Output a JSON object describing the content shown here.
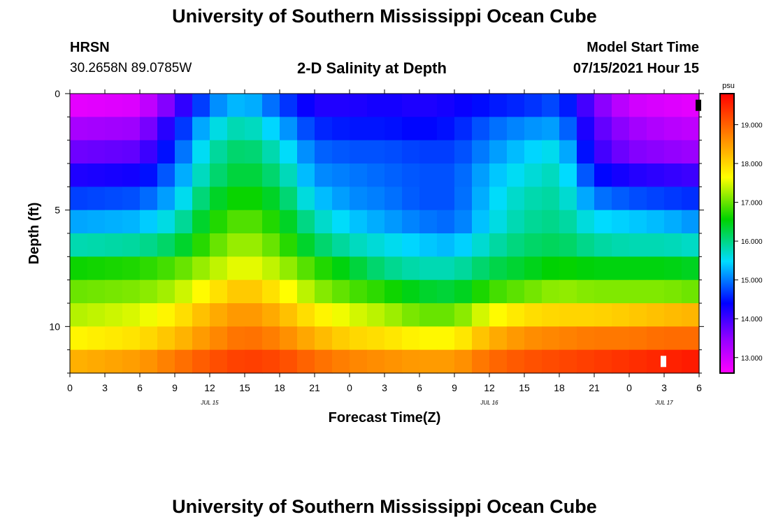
{
  "header": {
    "title": "University of Southern Mississippi Ocean Cube",
    "station_id": "HRSN",
    "coordinates": "30.2658N  89.0785W",
    "subtitle": "2-D Salinity at Depth",
    "model_start_label": "Model Start Time",
    "model_start_value": "07/15/2021 Hour 15"
  },
  "footer": {
    "title": "University of Southern Mississippi Ocean Cube"
  },
  "chart_data": {
    "type": "heatmap",
    "title": "2-D Salinity at Depth",
    "xlabel": "Forecast Time(Z)",
    "ylabel": "Depth (ft)",
    "x_ticks": [
      "0",
      "3",
      "6",
      "9",
      "12",
      "15",
      "18",
      "21",
      "0",
      "3",
      "6",
      "9",
      "12",
      "15",
      "18",
      "21",
      "0",
      "3",
      "6"
    ],
    "x_hours": [
      0,
      3,
      6,
      9,
      12,
      15,
      18,
      21,
      24,
      27,
      30,
      33,
      36,
      39,
      42,
      45,
      48,
      51,
      54
    ],
    "date_labels": [
      {
        "label": "JUL 15",
        "hour": 12
      },
      {
        "label": "JUL 16",
        "hour": 36
      },
      {
        "label": "JUL 17",
        "hour": 51
      }
    ],
    "y_ticks": [
      "0",
      "5",
      "10"
    ],
    "y_tick_values": [
      0,
      5,
      10
    ],
    "ylim": [
      0,
      12
    ],
    "xlim": [
      0,
      54
    ],
    "depth_layers_ft": [
      0.5,
      1.5,
      2.5,
      3.5,
      4.5,
      5.5,
      6.5,
      7.5,
      8.5,
      9.5,
      10.5,
      11.5
    ],
    "time_hours": [
      0,
      6,
      9,
      12,
      15,
      18,
      21,
      24,
      27,
      30,
      33,
      36,
      39,
      42,
      45,
      48,
      51,
      54
    ],
    "salinity_psu": [
      [
        12.8,
        12.9,
        13.8,
        15.0,
        15.4,
        14.8,
        14.2,
        14.2,
        14.3,
        14.2,
        14.3,
        14.5,
        14.6,
        14.8,
        13.7,
        13.0,
        12.9,
        12.8
      ],
      [
        13.3,
        13.4,
        14.4,
        15.5,
        15.9,
        15.3,
        14.6,
        14.5,
        14.5,
        14.4,
        14.5,
        14.9,
        15.1,
        15.2,
        13.9,
        13.4,
        13.2,
        13.1
      ],
      [
        13.7,
        13.8,
        14.7,
        15.8,
        16.2,
        15.7,
        14.9,
        14.8,
        14.8,
        14.7,
        14.7,
        15.1,
        15.4,
        15.6,
        14.1,
        13.6,
        13.5,
        13.4
      ],
      [
        14.2,
        14.3,
        15.0,
        16.0,
        16.4,
        16.0,
        15.1,
        15.0,
        14.9,
        14.8,
        14.8,
        15.3,
        15.6,
        15.8,
        14.5,
        14.2,
        14.1,
        14.0
      ],
      [
        14.7,
        14.8,
        15.3,
        16.3,
        16.7,
        16.3,
        15.4,
        15.1,
        15.0,
        14.8,
        14.8,
        15.4,
        15.8,
        15.9,
        15.0,
        14.8,
        14.7,
        14.6
      ],
      [
        15.2,
        15.3,
        15.7,
        16.6,
        17.0,
        16.6,
        15.8,
        15.4,
        15.2,
        15.0,
        14.9,
        15.5,
        15.9,
        16.0,
        15.5,
        15.4,
        15.3,
        15.1
      ],
      [
        15.8,
        15.9,
        16.2,
        16.9,
        17.3,
        16.9,
        16.2,
        15.8,
        15.6,
        15.4,
        15.3,
        15.8,
        16.1,
        16.2,
        15.9,
        15.8,
        15.8,
        15.7
      ],
      [
        16.6,
        16.7,
        16.9,
        17.3,
        17.6,
        17.3,
        16.8,
        16.4,
        16.0,
        15.8,
        15.8,
        16.2,
        16.4,
        16.6,
        16.5,
        16.5,
        16.5,
        16.4
      ],
      [
        17.0,
        17.1,
        17.3,
        17.8,
        18.2,
        17.8,
        17.2,
        16.9,
        16.7,
        16.4,
        16.3,
        16.8,
        17.0,
        17.2,
        17.1,
        17.1,
        17.1,
        17.0
      ],
      [
        17.3,
        17.5,
        17.8,
        18.3,
        18.6,
        18.3,
        17.8,
        17.5,
        17.3,
        17.0,
        17.0,
        17.6,
        17.9,
        18.0,
        18.0,
        18.1,
        18.2,
        18.3
      ],
      [
        17.7,
        17.9,
        18.2,
        18.6,
        18.9,
        18.7,
        18.3,
        18.0,
        17.9,
        17.7,
        17.7,
        18.3,
        18.6,
        18.7,
        18.8,
        18.8,
        18.9,
        18.9
      ],
      [
        18.3,
        18.5,
        18.8,
        19.1,
        19.3,
        19.2,
        18.9,
        18.7,
        18.6,
        18.5,
        18.5,
        18.9,
        19.1,
        19.2,
        19.3,
        19.4,
        19.5,
        19.6
      ]
    ],
    "colorbar": {
      "unit": "psu",
      "min": 12.6,
      "max": 19.8,
      "tick_labels": [
        "13.000",
        "14.000",
        "15.000",
        "16.000",
        "17.000",
        "18.000",
        "19.000"
      ],
      "tick_values": [
        13,
        14,
        15,
        16,
        17,
        18,
        19
      ]
    },
    "markers": [
      {
        "color": "#000000",
        "hour": 54,
        "depth": 0.5
      },
      {
        "color": "#ffffff",
        "hour": 51,
        "depth": 11.5
      }
    ]
  }
}
